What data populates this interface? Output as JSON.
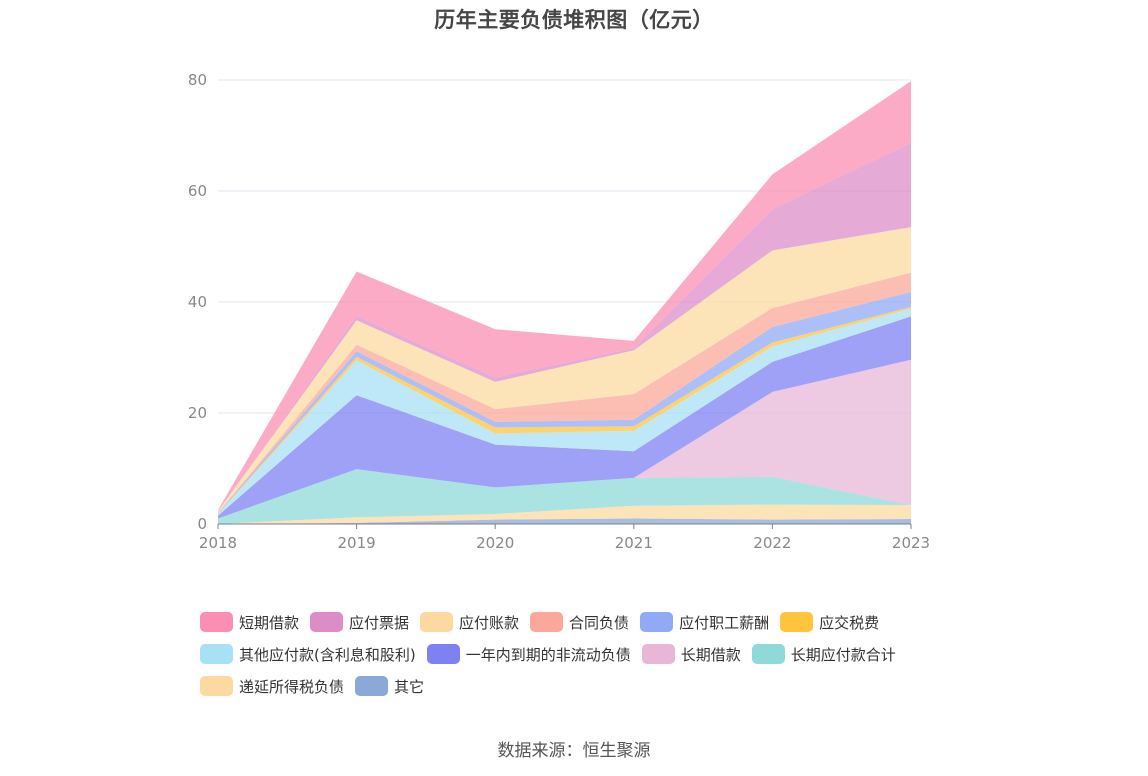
{
  "page": {
    "title": "历年主要负债堆积图（亿元）",
    "source": "数据来源：恒生聚源"
  },
  "chart_data": {
    "type": "area",
    "stacked": true,
    "title": "历年主要负债堆积图（亿元）",
    "x": [
      "2018",
      "2019",
      "2020",
      "2021",
      "2022",
      "2023"
    ],
    "ylim": [
      0,
      80
    ],
    "yticks": [
      0,
      20,
      40,
      60,
      80
    ],
    "grid": true,
    "legend_position": "bottom",
    "series": [
      {
        "name": "其它",
        "color": "#8aa8d8",
        "values": [
          0,
          0.2,
          0.8,
          1.0,
          0.8,
          0.9
        ]
      },
      {
        "name": "递延所得税负债",
        "color": "#fcd9a0",
        "values": [
          0,
          1.0,
          1.0,
          2.3,
          2.7,
          2.5
        ]
      },
      {
        "name": "长期应付款合计",
        "color": "#8fdad8",
        "values": [
          1.0,
          8.7,
          4.8,
          5.0,
          5.0,
          0.0
        ]
      },
      {
        "name": "长期借款",
        "color": "#e8b7d8",
        "values": [
          0,
          0,
          0,
          0,
          15.3,
          26.2
        ]
      },
      {
        "name": "一年内到期的非流动负债",
        "color": "#7e81f2",
        "values": [
          0.5,
          13.3,
          7.7,
          4.8,
          5.4,
          7.8
        ]
      },
      {
        "name": "其他应付款(含利息和股利)",
        "color": "#a8e0f6",
        "values": [
          0.3,
          6.3,
          2.0,
          3.7,
          2.8,
          1.4
        ]
      },
      {
        "name": "应交税费",
        "color": "#fec43e",
        "values": [
          0.1,
          0.6,
          1.1,
          0.8,
          0.7,
          0.3
        ]
      },
      {
        "name": "应付职工薪酬",
        "color": "#90aaf5",
        "values": [
          0.1,
          1.0,
          1.0,
          1.2,
          2.8,
          2.7
        ]
      },
      {
        "name": "合同负债",
        "color": "#fba89a",
        "values": [
          0,
          1.2,
          2.3,
          4.6,
          3.4,
          3.5
        ]
      },
      {
        "name": "应付账款",
        "color": "#fcd9a0",
        "values": [
          0.3,
          4.4,
          4.9,
          7.9,
          10.4,
          8.2
        ]
      },
      {
        "name": "应付票据",
        "color": "#dc8dc7",
        "values": [
          0,
          0.8,
          0.8,
          0.4,
          7.4,
          15.2
        ]
      },
      {
        "name": "短期借款",
        "color": "#fb8fb3",
        "values": [
          0.2,
          8.0,
          8.7,
          1.3,
          6.3,
          11.1
        ]
      }
    ]
  },
  "legend": {
    "rows": [
      [
        {
          "label": "短期借款",
          "color": "#fb8fb3"
        },
        {
          "label": "应付票据",
          "color": "#dc8dc7"
        },
        {
          "label": "应付账款",
          "color": "#fcd9a0"
        },
        {
          "label": "合同负债",
          "color": "#fba89a"
        },
        {
          "label": "应付职工薪酬",
          "color": "#90aaf5"
        },
        {
          "label": "应交税费",
          "color": "#fec43e"
        }
      ],
      [
        {
          "label": "其他应付款(含利息和股利)",
          "color": "#a8e0f6"
        },
        {
          "label": "一年内到期的非流动负债",
          "color": "#7e81f2"
        },
        {
          "label": "长期借款",
          "color": "#e8b7d8"
        },
        {
          "label": "长期应付款合计",
          "color": "#8fdad8"
        }
      ],
      [
        {
          "label": "递延所得税负债",
          "color": "#fcd9a0"
        },
        {
          "label": "其它",
          "color": "#8aa8d8"
        }
      ]
    ]
  }
}
